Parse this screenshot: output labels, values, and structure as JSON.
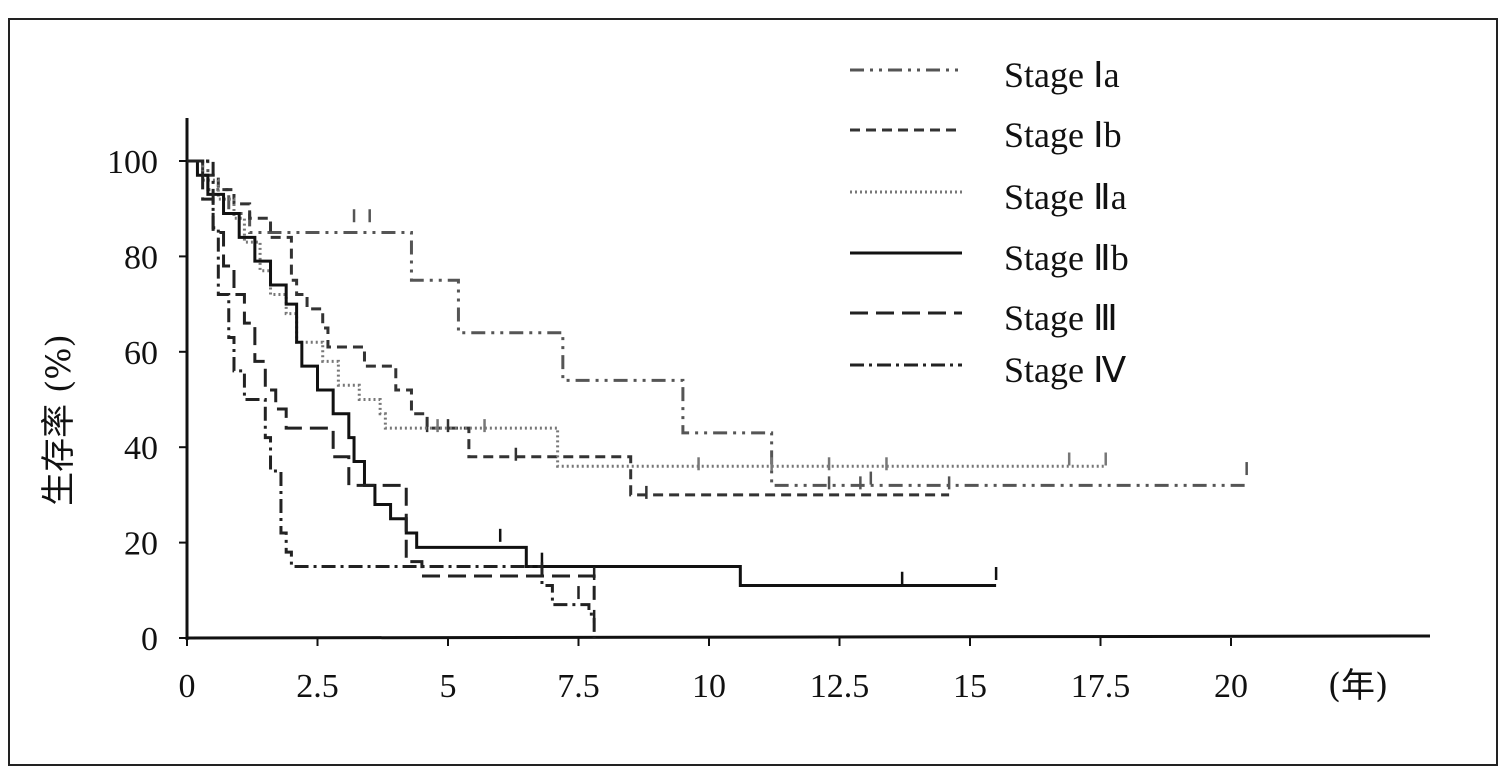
{
  "chart_data": {
    "type": "line",
    "subtype": "kaplan-meier",
    "title": "",
    "xlabel": "(年)",
    "ylabel": "生存率 (%)",
    "xlim": [
      0,
      23.5
    ],
    "ylim": [
      0,
      108
    ],
    "xticks": [
      "0",
      "2.5",
      "5",
      "7.5",
      "10",
      "12.5",
      "15",
      "17.5",
      "20"
    ],
    "yticks": [
      "0",
      "20",
      "40",
      "60",
      "80",
      "100"
    ],
    "legend_position": "top-right",
    "series": [
      {
        "name": "Stage Ⅰa",
        "dash": "14 6 3 6 3 6",
        "color": "#555555",
        "steps": [
          [
            0,
            100
          ],
          [
            0.4,
            94
          ],
          [
            0.8,
            89
          ],
          [
            1.2,
            85
          ],
          [
            4.3,
            85
          ],
          [
            4.3,
            75
          ],
          [
            5.2,
            75
          ],
          [
            5.2,
            64
          ],
          [
            7.2,
            64
          ],
          [
            7.2,
            54
          ],
          [
            9.5,
            54
          ],
          [
            9.5,
            43
          ],
          [
            11.2,
            43
          ],
          [
            11.2,
            32
          ],
          [
            20.3,
            32
          ]
        ],
        "censor": [
          [
            3.2,
            88
          ],
          [
            3.5,
            88
          ],
          [
            12.3,
            32
          ],
          [
            12.9,
            32
          ],
          [
            13.1,
            33
          ],
          [
            14.6,
            32
          ],
          [
            20.3,
            35
          ]
        ]
      },
      {
        "name": "Stage Ⅰb",
        "dash": "10 6",
        "color": "#333333",
        "steps": [
          [
            0,
            100
          ],
          [
            0.3,
            97
          ],
          [
            0.6,
            94
          ],
          [
            0.9,
            91
          ],
          [
            1.2,
            88
          ],
          [
            1.6,
            84
          ],
          [
            2.0,
            75
          ],
          [
            2.1,
            72
          ],
          [
            2.3,
            69
          ],
          [
            2.6,
            65
          ],
          [
            2.7,
            61
          ],
          [
            3.4,
            61
          ],
          [
            3.4,
            57
          ],
          [
            4.0,
            57
          ],
          [
            4.0,
            52
          ],
          [
            4.3,
            47
          ],
          [
            4.6,
            44
          ],
          [
            5.4,
            44
          ],
          [
            5.4,
            38
          ],
          [
            8.5,
            38
          ],
          [
            8.5,
            30
          ],
          [
            14.6,
            30
          ]
        ],
        "censor": [
          [
            4.6,
            44
          ],
          [
            5.0,
            44
          ],
          [
            6.3,
            38
          ],
          [
            8.8,
            30
          ]
        ]
      },
      {
        "name": "Stage Ⅱa",
        "dash": "2 3",
        "color": "#777777",
        "steps": [
          [
            0,
            100
          ],
          [
            0.3,
            96
          ],
          [
            0.6,
            92
          ],
          [
            0.9,
            88
          ],
          [
            1.1,
            83
          ],
          [
            1.4,
            77
          ],
          [
            1.6,
            72
          ],
          [
            1.9,
            68
          ],
          [
            2.1,
            62
          ],
          [
            2.6,
            58
          ],
          [
            2.9,
            53
          ],
          [
            3.3,
            50
          ],
          [
            3.7,
            47
          ],
          [
            3.8,
            44
          ],
          [
            7.1,
            44
          ],
          [
            7.1,
            36
          ],
          [
            17.6,
            36
          ]
        ],
        "censor": [
          [
            4.8,
            44
          ],
          [
            5.7,
            44
          ],
          [
            9.8,
            36
          ],
          [
            11.2,
            36
          ],
          [
            12.3,
            36
          ],
          [
            13.4,
            36
          ],
          [
            16.9,
            37
          ],
          [
            17.6,
            37
          ]
        ]
      },
      {
        "name": "Stage Ⅱb",
        "dash": "",
        "color": "#111111",
        "steps": [
          [
            0,
            100
          ],
          [
            0.2,
            97
          ],
          [
            0.4,
            93
          ],
          [
            0.7,
            89
          ],
          [
            1.0,
            84
          ],
          [
            1.3,
            79
          ],
          [
            1.6,
            74
          ],
          [
            1.9,
            70
          ],
          [
            2.1,
            62
          ],
          [
            2.2,
            57
          ],
          [
            2.5,
            52
          ],
          [
            2.8,
            47
          ],
          [
            3.1,
            42
          ],
          [
            3.2,
            37
          ],
          [
            3.4,
            32
          ],
          [
            3.6,
            28
          ],
          [
            3.9,
            25
          ],
          [
            4.2,
            22
          ],
          [
            4.4,
            19
          ],
          [
            6.5,
            19
          ],
          [
            6.5,
            15
          ],
          [
            10.6,
            15
          ],
          [
            10.6,
            11
          ],
          [
            15.5,
            11
          ]
        ],
        "censor": [
          [
            6.0,
            21
          ],
          [
            6.8,
            16
          ],
          [
            13.7,
            12
          ],
          [
            15.5,
            13
          ]
        ]
      },
      {
        "name": "Stage Ⅲ",
        "dash": "18 8",
        "color": "#222222",
        "steps": [
          [
            0,
            100
          ],
          [
            0.3,
            92
          ],
          [
            0.5,
            85
          ],
          [
            0.7,
            78
          ],
          [
            0.9,
            72
          ],
          [
            1.1,
            66
          ],
          [
            1.3,
            58
          ],
          [
            1.5,
            52
          ],
          [
            1.7,
            48
          ],
          [
            1.9,
            44
          ],
          [
            2.5,
            44
          ],
          [
            2.8,
            38
          ],
          [
            3.1,
            32
          ],
          [
            3.8,
            32
          ],
          [
            4.2,
            16
          ],
          [
            4.5,
            13
          ],
          [
            7.8,
            13
          ],
          [
            7.8,
            8
          ]
        ],
        "censor": [
          [
            6.8,
            14
          ],
          [
            7.8,
            13
          ]
        ]
      },
      {
        "name": "Stage Ⅳ",
        "dash": "14 5 3 5",
        "color": "#222222",
        "steps": [
          [
            0,
            100
          ],
          [
            0.5,
            86
          ],
          [
            0.6,
            72
          ],
          [
            0.8,
            63
          ],
          [
            0.9,
            56
          ],
          [
            1.1,
            50
          ],
          [
            1.4,
            50
          ],
          [
            1.5,
            42
          ],
          [
            1.6,
            35
          ],
          [
            1.8,
            22
          ],
          [
            1.9,
            18
          ],
          [
            2.0,
            15
          ],
          [
            6.8,
            15
          ],
          [
            6.8,
            11
          ],
          [
            7.0,
            11
          ],
          [
            7.0,
            7
          ],
          [
            7.5,
            7
          ],
          [
            7.7,
            5
          ],
          [
            7.8,
            0
          ]
        ],
        "censor": [
          [
            7.5,
            9
          ],
          [
            7.8,
            4
          ]
        ]
      }
    ]
  }
}
